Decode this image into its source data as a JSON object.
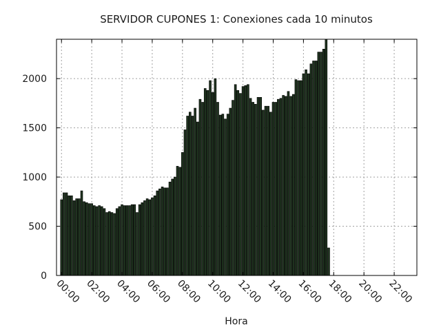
{
  "chart_data": {
    "type": "bar",
    "title": "SERVIDOR CUPONES 1: Conexiones cada 10 minutos",
    "xlabel": "Hora",
    "ylabel": "",
    "ylim": [
      0,
      2400
    ],
    "xlim_hours": [
      -0.33,
      23.5
    ],
    "yticks": [
      0,
      500,
      1000,
      1500,
      2000
    ],
    "xticks": [
      "00:00",
      "02:00",
      "04:00",
      "06:00",
      "08:00",
      "10:00",
      "12:00",
      "14:00",
      "16:00",
      "18:00",
      "20:00",
      "22:00"
    ],
    "grid": true,
    "bar_color": "#1f331f",
    "interval_minutes": 10,
    "values": [
      770,
      840,
      840,
      810,
      810,
      760,
      780,
      780,
      860,
      750,
      740,
      730,
      730,
      710,
      700,
      710,
      700,
      680,
      640,
      650,
      640,
      630,
      680,
      700,
      720,
      710,
      710,
      710,
      720,
      720,
      640,
      720,
      740,
      760,
      780,
      770,
      790,
      810,
      860,
      880,
      900,
      890,
      890,
      950,
      980,
      1000,
      1110,
      1100,
      1250,
      1480,
      1620,
      1660,
      1620,
      1700,
      1560,
      1790,
      1760,
      1900,
      1880,
      1980,
      1860,
      2000,
      1760,
      1630,
      1640,
      1590,
      1640,
      1700,
      1780,
      1940,
      1880,
      1850,
      1920,
      1930,
      1940,
      1800,
      1760,
      1740,
      1810,
      1810,
      1680,
      1720,
      1720,
      1660,
      1760,
      1760,
      1790,
      1800,
      1830,
      1820,
      1870,
      1820,
      1840,
      1990,
      1980,
      1980,
      2050,
      2090,
      2050,
      2150,
      2180,
      2180,
      2270,
      2270,
      2300,
      2420,
      280
    ]
  }
}
